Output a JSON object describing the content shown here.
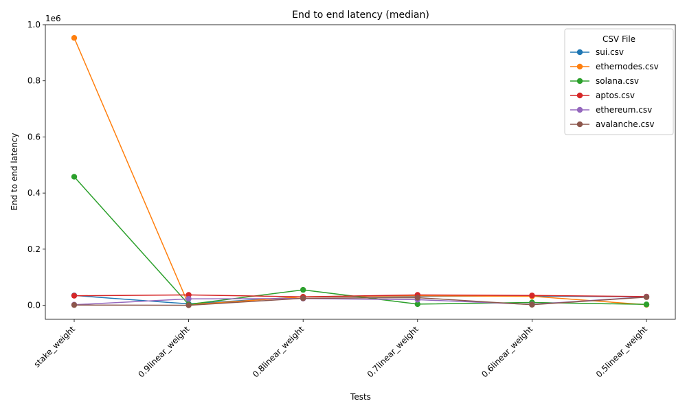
{
  "chart_data": {
    "type": "line",
    "title": "End to end latency (median)",
    "xlabel": "Tests",
    "ylabel": "End to end latency",
    "y_offset_text": "1e6",
    "categories": [
      "stake_weight",
      "0.9linear_weight",
      "0.8linear_weight",
      "0.7linear_weight",
      "0.6linear_weight",
      "0.5linear_weight"
    ],
    "ylim": [
      -50000,
      1000000
    ],
    "yticks": [
      0,
      200000,
      400000,
      600000,
      800000,
      1000000
    ],
    "ytick_labels": [
      "0.0",
      "0.2",
      "0.4",
      "0.6",
      "0.8",
      "1.0"
    ],
    "grid": false,
    "legend": {
      "title": "CSV File",
      "position": "top-right"
    },
    "series": [
      {
        "name": "sui.csv",
        "color": "#1f77b4",
        "values": [
          35000,
          5000,
          30000,
          32000,
          33000,
          30000
        ]
      },
      {
        "name": "ethernodes.csv",
        "color": "#ff7f0e",
        "values": [
          953000,
          2000,
          30000,
          34000,
          32000,
          2000
        ]
      },
      {
        "name": "solana.csv",
        "color": "#2ca02c",
        "values": [
          458000,
          3000,
          55000,
          4000,
          10000,
          3000
        ]
      },
      {
        "name": "aptos.csv",
        "color": "#d62728",
        "values": [
          34000,
          37000,
          30000,
          37000,
          35000,
          31000
        ]
      },
      {
        "name": "ethereum.csv",
        "color": "#9467bd",
        "values": [
          2000,
          23000,
          24000,
          20000,
          3000,
          30000
        ]
      },
      {
        "name": "avalanche.csv",
        "color": "#8c564b",
        "values": [
          1000,
          0,
          25000,
          27000,
          2000,
          29000
        ]
      }
    ]
  }
}
